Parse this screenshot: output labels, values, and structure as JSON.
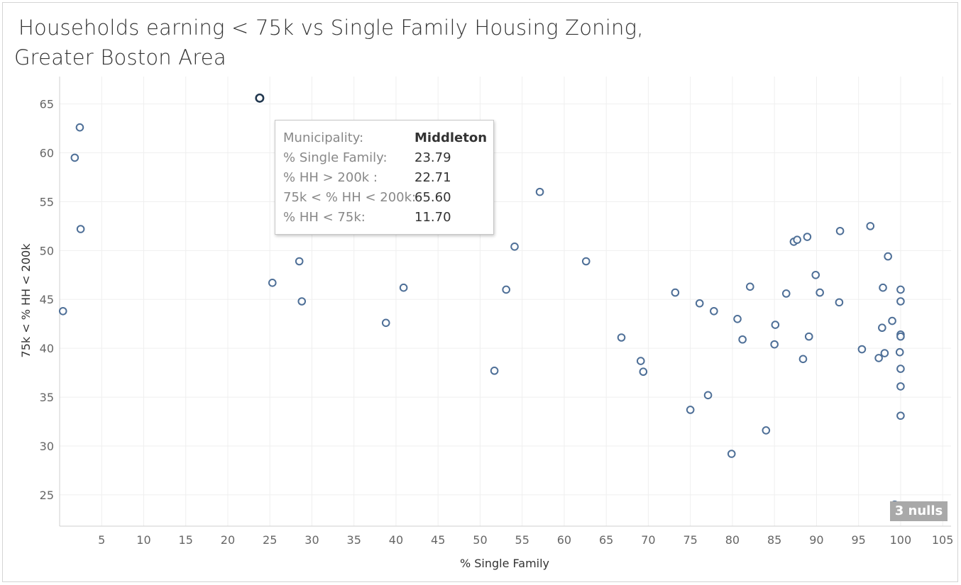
{
  "title": {
    "line1": "Households earning < 75k vs Single Family Housing Zoning,",
    "line2": "Greater Boston Area"
  },
  "tooltip": {
    "rows": [
      {
        "key": "Municipality:",
        "value": "Middleton"
      },
      {
        "key": "% Single Family:",
        "value": "23.79"
      },
      {
        "key": "% HH > 200k :",
        "value": "22.71"
      },
      {
        "key": "75k < % HH < 200k:",
        "value": "65.60"
      },
      {
        "key": "% HH < 75k:",
        "value": "11.70"
      }
    ]
  },
  "nulls_badge": "3 nulls",
  "colors": {
    "marker": "#4e6f97",
    "selected": "#22384f",
    "grid": "#efefef",
    "tick_text": "#666666"
  },
  "chart_data": {
    "type": "scatter",
    "xlabel": "% Single Family",
    "ylabel": "75k < % HH < 200k",
    "xlim": [
      0,
      106
    ],
    "ylim": [
      21.8,
      67.8
    ],
    "xticks": [
      5,
      10,
      15,
      20,
      25,
      30,
      35,
      40,
      45,
      50,
      55,
      60,
      65,
      70,
      75,
      80,
      85,
      90,
      95,
      100,
      105
    ],
    "yticks": [
      25,
      30,
      35,
      40,
      45,
      50,
      55,
      60,
      65
    ],
    "grid": true,
    "selected_point": {
      "name": "Middleton",
      "x": 23.79,
      "y": 65.6
    },
    "points": [
      [
        0.4,
        43.8
      ],
      [
        1.8,
        59.5
      ],
      [
        2.4,
        62.6
      ],
      [
        2.5,
        52.2
      ],
      [
        23.8,
        65.6
      ],
      [
        25.3,
        46.7
      ],
      [
        28.5,
        48.9
      ],
      [
        28.8,
        44.8
      ],
      [
        38.8,
        42.6
      ],
      [
        40.9,
        46.2
      ],
      [
        51.7,
        37.7
      ],
      [
        53.1,
        46.0
      ],
      [
        54.1,
        50.4
      ],
      [
        57.1,
        56.0
      ],
      [
        62.6,
        48.9
      ],
      [
        66.8,
        41.1
      ],
      [
        69.1,
        38.7
      ],
      [
        69.4,
        37.6
      ],
      [
        73.2,
        45.7
      ],
      [
        75.0,
        33.7
      ],
      [
        76.1,
        44.6
      ],
      [
        77.1,
        35.2
      ],
      [
        77.8,
        43.8
      ],
      [
        79.9,
        29.2
      ],
      [
        80.6,
        43.0
      ],
      [
        81.2,
        40.9
      ],
      [
        82.1,
        46.3
      ],
      [
        84.0,
        31.6
      ],
      [
        85.0,
        40.4
      ],
      [
        85.1,
        42.4
      ],
      [
        86.4,
        45.6
      ],
      [
        87.3,
        50.9
      ],
      [
        87.7,
        51.1
      ],
      [
        88.4,
        38.9
      ],
      [
        88.9,
        51.4
      ],
      [
        89.1,
        41.2
      ],
      [
        89.9,
        47.5
      ],
      [
        90.4,
        45.7
      ],
      [
        92.7,
        44.7
      ],
      [
        92.8,
        52.0
      ],
      [
        95.4,
        39.9
      ],
      [
        96.4,
        52.5
      ],
      [
        97.4,
        39.0
      ],
      [
        97.8,
        42.1
      ],
      [
        97.9,
        46.2
      ],
      [
        98.1,
        39.5
      ],
      [
        98.5,
        49.4
      ],
      [
        99.0,
        42.8
      ],
      [
        99.3,
        24.0
      ],
      [
        99.9,
        39.6
      ],
      [
        100.0,
        46.0
      ],
      [
        100.0,
        44.8
      ],
      [
        100.0,
        41.4
      ],
      [
        100.0,
        41.2
      ],
      [
        100.0,
        37.9
      ],
      [
        100.0,
        36.1
      ],
      [
        100.0,
        33.1
      ]
    ]
  }
}
